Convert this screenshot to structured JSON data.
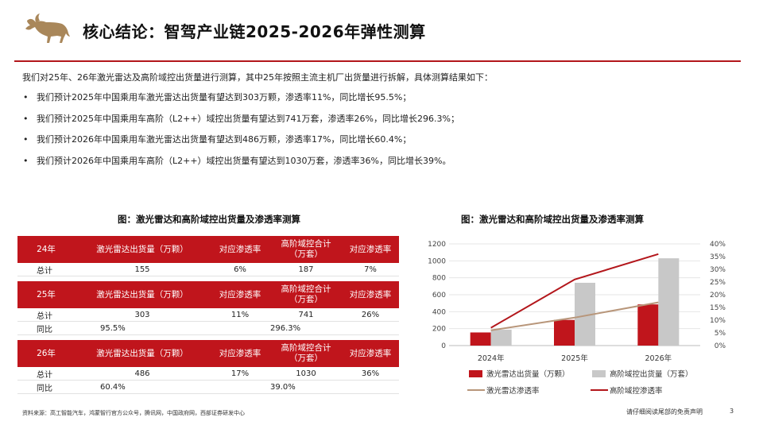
{
  "header": {
    "title": "核心结论：智驾产业链2025-2026年弹性测算",
    "brand_color": "#b3161b"
  },
  "intro": "我们对25年、26年激光雷达及高阶域控出货量进行测算，其中25年按照主流主机厂出货量进行拆解，具体测算结果如下：",
  "bullets": [
    "我们预计2025年中国乘用车激光雷达出货量有望达到303万颗，渗透率11%，同比增长95.5%；",
    "我们预计2025年中国乘用车高阶（L2++）域控出货量有望达到741万套，渗透率26%，同比增长296.3%；",
    "我们预计2026年中国乘用车激光雷达出货量有望达到486万颗，渗透率17%，同比增长60.4%；",
    "我们预计2026年中国乘用车高阶（L2++）域控出货量有望达到1030万套，渗透率36%，同比增长39%。"
  ],
  "table": {
    "caption": "图：激光雷达和高阶域控出货量及渗透率测算",
    "header_color": "#c0151c",
    "sections": [
      {
        "year": "24年",
        "col_lidar": "激光雷达出货量（万颗）",
        "col_pen1": "对应渗透率",
        "col_dc_line1": "高阶域控合计",
        "col_dc_line2": "（万套）",
        "col_pen2": "对应渗透率",
        "total_label": "总计",
        "total": [
          "155",
          "6%",
          "187",
          "7%"
        ]
      },
      {
        "year": "25年",
        "col_lidar": "激光雷达出货量（万颗）",
        "col_pen1": "对应渗透率",
        "col_dc_line1": "高阶域控合计",
        "col_dc_line2": "（万套）",
        "col_pen2": "对应渗透率",
        "total_label": "总计",
        "total": [
          "303",
          "11%",
          "741",
          "26%"
        ],
        "yoy_label": "同比",
        "yoy": [
          "95.5%",
          "296.3%"
        ]
      },
      {
        "year": "26年",
        "col_lidar": "激光雷达出货量（万颗）",
        "col_pen1": "对应渗透率",
        "col_dc_line1": "高阶域控合计",
        "col_dc_line2": "（万套）",
        "col_pen2": "对应渗透率",
        "total_label": "总计",
        "total": [
          "486",
          "17%",
          "1030",
          "36%"
        ],
        "yoy_label": "同比",
        "yoy": [
          "60.4%",
          "39.0%"
        ]
      }
    ]
  },
  "chart_data": {
    "type": "bar",
    "title": "图：激光雷达和高阶域控出货量及渗透率测算",
    "categories": [
      "2024年",
      "2025年",
      "2026年"
    ],
    "ylim": [
      0,
      1200
    ],
    "yticks": [
      "0",
      "200",
      "400",
      "600",
      "800",
      "1000",
      "1200"
    ],
    "y2lim": [
      0,
      40
    ],
    "y2ticks": [
      "0%",
      "5%",
      "10%",
      "15%",
      "20%",
      "25%",
      "30%",
      "35%",
      "40%"
    ],
    "grid": true,
    "legend_position": "bottom",
    "series": [
      {
        "name": "激光雷达出货量（万颗）",
        "kind": "bar",
        "axis": "left",
        "color": "#c0151c",
        "values": [
          155,
          303,
          486
        ]
      },
      {
        "name": "高阶域控出货量（万套）",
        "kind": "bar",
        "axis": "left",
        "color": "#c8c8c8",
        "values": [
          187,
          741,
          1030
        ]
      },
      {
        "name": "激光雷达渗透率",
        "kind": "line",
        "axis": "right",
        "color": "#b8967a",
        "values": [
          6,
          11,
          17
        ]
      },
      {
        "name": "高阶域控渗透率",
        "kind": "line",
        "axis": "right",
        "color": "#b3161b",
        "values": [
          7,
          26,
          36
        ]
      }
    ]
  },
  "footer": {
    "source": "资料来源：高工智能汽车，鸿蒙智行官方公众号，腾讯网，中国政府网，西部证券研发中心",
    "disclaimer": "请仔细阅读尾部的免责声明",
    "page": "3"
  }
}
